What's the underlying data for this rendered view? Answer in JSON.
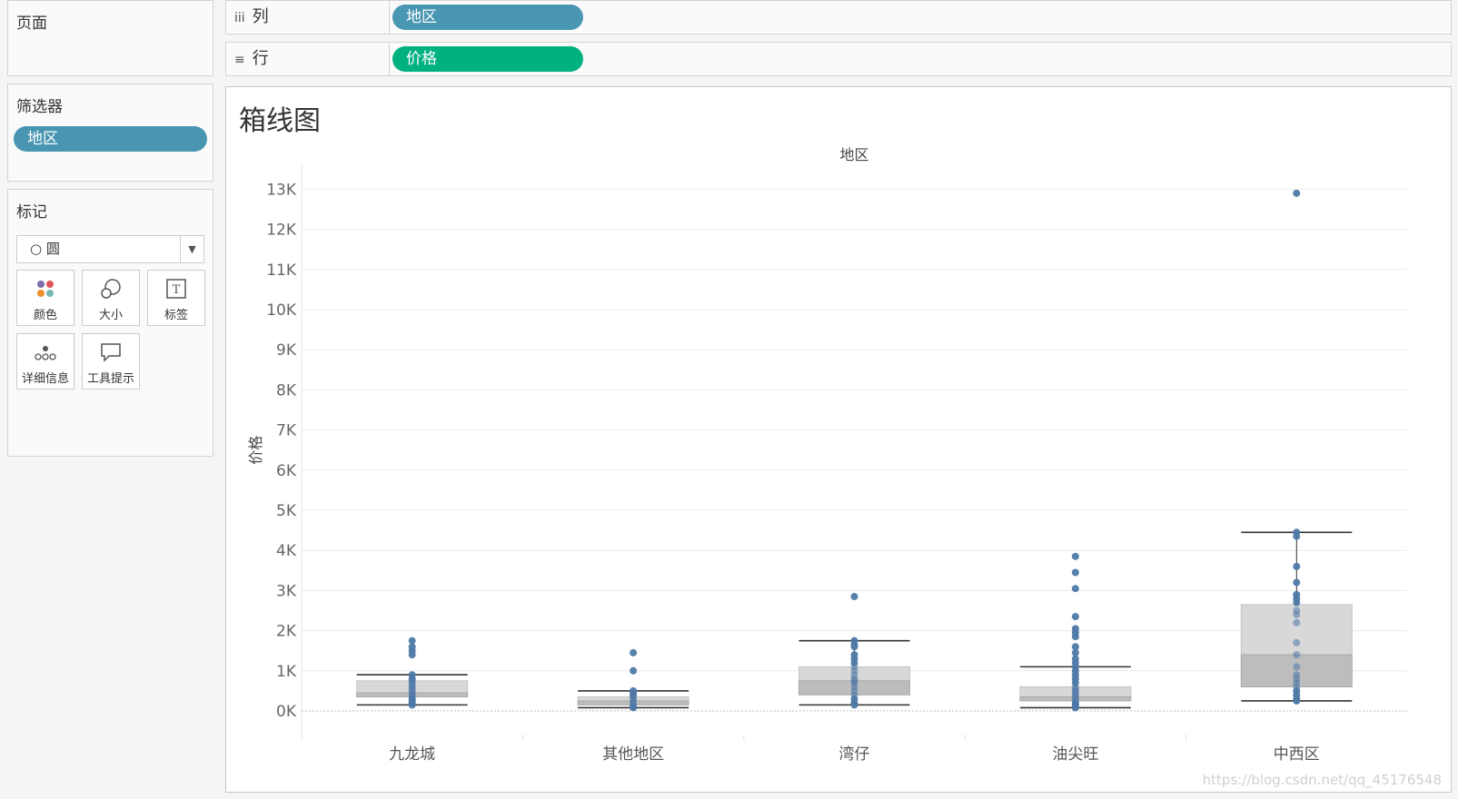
{
  "cards": {
    "pages": {
      "title": "页面"
    },
    "filters": {
      "title": "筛选器",
      "items": [
        "地区"
      ]
    },
    "marks": {
      "title": "标记",
      "mark_type": "○ 圆",
      "buttons": [
        {
          "label": "颜色",
          "icon": "color-icon"
        },
        {
          "label": "大小",
          "icon": "size-icon"
        },
        {
          "label": "标签",
          "icon": "label-icon"
        },
        {
          "label": "详细信息",
          "icon": "detail-icon"
        },
        {
          "label": "工具提示",
          "icon": "tooltip-icon"
        }
      ]
    }
  },
  "shelves": {
    "columns": {
      "label": "列",
      "icon": "columns-icon",
      "glyph": "iii",
      "pill": "地区",
      "color": "#4996b2"
    },
    "rows": {
      "label": "行",
      "icon": "rows-icon",
      "glyph": "≡",
      "pill": "价格",
      "color": "#00b180"
    }
  },
  "viz": {
    "title": "箱线图"
  },
  "watermark": "https://blog.csdn.net/qq_45176548",
  "chart_data": {
    "type": "box",
    "title": "箱线图",
    "xlabel": "地区",
    "ylabel": "价格",
    "ylim": [
      0,
      13500
    ],
    "y_ticks": [
      "0K",
      "1K",
      "2K",
      "3K",
      "4K",
      "5K",
      "6K",
      "7K",
      "8K",
      "9K",
      "10K",
      "11K",
      "12K",
      "13K"
    ],
    "y_tick_values": [
      0,
      1000,
      2000,
      3000,
      4000,
      5000,
      6000,
      7000,
      8000,
      9000,
      10000,
      11000,
      12000,
      13000
    ],
    "grid": true,
    "colors": {
      "point": "#4e79a7",
      "box_upper": "#d8d8d8",
      "box_lower": "#bdbdbd",
      "whisker": "#333333"
    },
    "categories": [
      "九龙城",
      "其他地区",
      "湾仔",
      "油尖旺",
      "中西区"
    ],
    "boxes": [
      {
        "min": 150,
        "q1": 350,
        "median": 450,
        "q3": 750,
        "max": 900,
        "points": [
          150,
          200,
          250,
          300,
          350,
          400,
          450,
          500,
          550,
          600,
          650,
          700,
          750,
          800,
          900,
          1400,
          1500,
          1600,
          1750
        ]
      },
      {
        "min": 80,
        "q1": 150,
        "median": 250,
        "q3": 350,
        "max": 500,
        "points": [
          80,
          100,
          150,
          200,
          250,
          300,
          350,
          400,
          450,
          500,
          1000,
          1450
        ]
      },
      {
        "min": 150,
        "q1": 400,
        "median": 750,
        "q3": 1100,
        "max": 1750,
        "points": [
          150,
          200,
          300,
          400,
          500,
          600,
          700,
          750,
          800,
          900,
          1000,
          1100,
          1200,
          1300,
          1400,
          1600,
          1650,
          1750,
          2850
        ]
      },
      {
        "min": 80,
        "q1": 250,
        "median": 350,
        "q3": 600,
        "max": 1100,
        "points": [
          80,
          100,
          150,
          200,
          250,
          300,
          350,
          400,
          450,
          500,
          550,
          600,
          700,
          800,
          900,
          1000,
          1100,
          1200,
          1300,
          1450,
          1600,
          1850,
          1950,
          2050,
          2350,
          3050,
          3450,
          3850
        ]
      },
      {
        "min": 250,
        "q1": 600,
        "median": 1400,
        "q3": 2650,
        "max": 4450,
        "points": [
          250,
          300,
          400,
          500,
          600,
          700,
          800,
          900,
          1100,
          1400,
          1700,
          2200,
          2400,
          2500,
          2700,
          2800,
          2900,
          3200,
          3600,
          4350,
          4450,
          12900
        ]
      }
    ]
  }
}
